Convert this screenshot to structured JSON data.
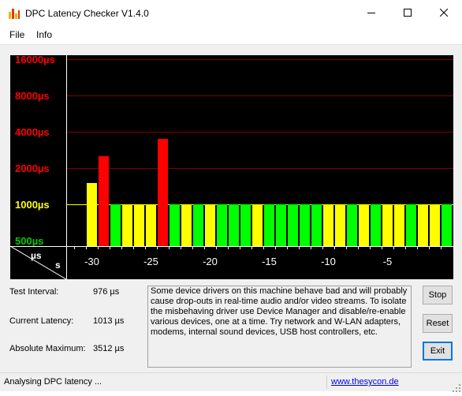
{
  "window": {
    "title": "DPC Latency Checker V1.4.0",
    "controls": {
      "minimize": "minimize-icon",
      "maximize": "maximize-icon",
      "close": "close-icon"
    }
  },
  "menu": {
    "file": "File",
    "info": "Info"
  },
  "chart_data": {
    "type": "bar",
    "y_scale": "log",
    "y_labels": [
      {
        "text": "16000µs",
        "value": 16000,
        "color": "#ff0000",
        "gridline": true
      },
      {
        "text": "8000µs",
        "value": 8000,
        "color": "#ff0000",
        "gridline": true
      },
      {
        "text": "4000µs",
        "value": 4000,
        "color": "#ff0000",
        "gridline": true
      },
      {
        "text": "2000µs",
        "value": 2000,
        "color": "#ff0000",
        "gridline": true
      },
      {
        "text": "1000µs",
        "value": 1000,
        "color": "#ffff00",
        "gridline": true
      },
      {
        "text": "500µs",
        "value": 500,
        "color": "#00cc00",
        "gridline": false
      }
    ],
    "y_axis_unit": "µs",
    "x_axis_unit": "s",
    "x_ticks": [
      {
        "label": "-30",
        "value": -30
      },
      {
        "label": "-25",
        "value": -25
      },
      {
        "label": "-20",
        "value": -20
      },
      {
        "label": "-15",
        "value": -15
      },
      {
        "label": "-10",
        "value": -10
      },
      {
        "label": "-5",
        "value": -5
      }
    ],
    "x": [
      -31,
      -30,
      -29,
      -28,
      -27,
      -26,
      -25,
      -24,
      -23,
      -22,
      -21,
      -20,
      -19,
      -18,
      -17,
      -16,
      -15,
      -14,
      -13,
      -12,
      -11,
      -10,
      -9,
      -8,
      -7,
      -6,
      -5,
      -4,
      -3,
      -2,
      -1,
      0
    ],
    "values": [
      0,
      1500,
      2500,
      1000,
      1000,
      1000,
      1000,
      3500,
      1000,
      1000,
      1000,
      1000,
      1000,
      1000,
      1000,
      1000,
      1000,
      1000,
      1000,
      1000,
      1000,
      1000,
      1000,
      1000,
      1000,
      1000,
      1000,
      1000,
      1000,
      1000,
      1000,
      1000
    ],
    "colors": [
      "none",
      "#ffff00",
      "#ff0000",
      "#00ff00",
      "#ffff00",
      "#ffff00",
      "#ffff00",
      "#ff0000",
      "#00ff00",
      "#ffff00",
      "#00ff00",
      "#ffff00",
      "#00ff00",
      "#00ff00",
      "#00ff00",
      "#ffff00",
      "#00ff00",
      "#00ff00",
      "#00ff00",
      "#00ff00",
      "#00ff00",
      "#ffff00",
      "#ffff00",
      "#00ff00",
      "#ffff00",
      "#00ff00",
      "#ffff00",
      "#ffff00",
      "#00ff00",
      "#ffff00",
      "#ffff00",
      "#00ff00"
    ],
    "grid": true,
    "palette": {
      "background": "#000000",
      "gridline": "#800000",
      "axis": "#ffffff",
      "tick_label": "#ffffff"
    }
  },
  "stats": {
    "test_interval": {
      "label": "Test Interval:",
      "value": "976 µs"
    },
    "current_latency": {
      "label": "Current Latency:",
      "value": "1013 µs"
    },
    "absolute_maximum": {
      "label": "Absolute Maximum:",
      "value": "3512 µs"
    }
  },
  "info_message": "Some device drivers on this machine behave bad and will probably cause drop-outs in real-time audio and/or video streams. To isolate the misbehaving driver use Device Manager and disable/re-enable various devices, one at a time. Try network and W-LAN adapters, modems, internal sound devices, USB host controllers, etc.",
  "buttons": {
    "stop": "Stop",
    "reset": "Reset",
    "exit": "Exit"
  },
  "status": {
    "text": "Analysing DPC latency ...",
    "link": "www.thesycon.de"
  }
}
